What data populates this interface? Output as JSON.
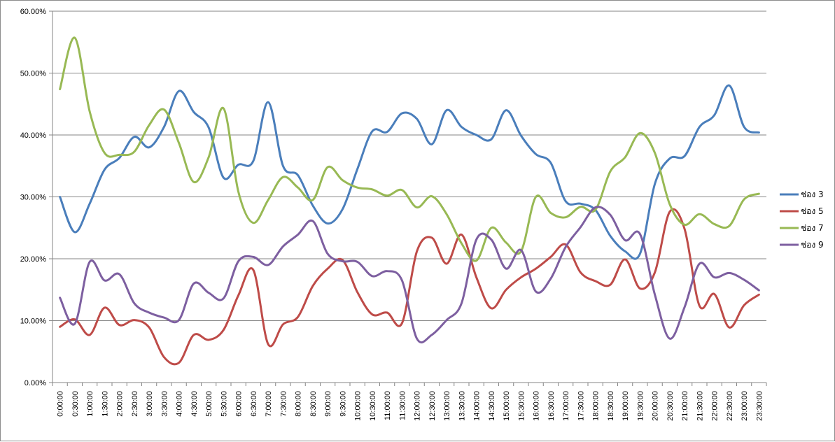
{
  "chart_data": {
    "type": "line",
    "title": "",
    "xlabel": "",
    "ylabel": "",
    "ylim": [
      0,
      0.6
    ],
    "y_ticks": [
      "0.00%",
      "10.00%",
      "20.00%",
      "30.00%",
      "40.00%",
      "50.00%",
      "60.00%"
    ],
    "grid": "horizontal",
    "legend_position": "right",
    "x": [
      "0:00:00",
      "0:30:00",
      "1:00:00",
      "1:30:00",
      "2:00:00",
      "2:30:00",
      "3:00:00",
      "3:30:00",
      "4:00:00",
      "4:30:00",
      "5:00:00",
      "5:30:00",
      "6:00:00",
      "6:30:00",
      "7:00:00",
      "7:30:00",
      "8:00:00",
      "8:30:00",
      "9:00:00",
      "9:30:00",
      "10:00:00",
      "10:30:00",
      "11:00:00",
      "11:30:00",
      "12:00:00",
      "12:30:00",
      "13:00:00",
      "13:30:00",
      "14:00:00",
      "14:30:00",
      "15:00:00",
      "15:30:00",
      "16:00:00",
      "16:30:00",
      "17:00:00",
      "17:30:00",
      "18:00:00",
      "18:30:00",
      "19:00:00",
      "19:30:00",
      "20:00:00",
      "20:30:00",
      "21:00:00",
      "21:30:00",
      "22:00:00",
      "22:30:00",
      "23:00:00",
      "23:30:00"
    ],
    "series": [
      {
        "name": "ช่อง 3",
        "color": "#4a7ebb",
        "values": [
          0.3,
          0.243,
          0.289,
          0.344,
          0.363,
          0.397,
          0.38,
          0.413,
          0.471,
          0.437,
          0.412,
          0.331,
          0.352,
          0.358,
          0.453,
          0.35,
          0.335,
          0.286,
          0.257,
          0.28,
          0.345,
          0.406,
          0.405,
          0.435,
          0.426,
          0.385,
          0.44,
          0.413,
          0.4,
          0.393,
          0.44,
          0.399,
          0.369,
          0.355,
          0.293,
          0.289,
          0.279,
          0.237,
          0.212,
          0.208,
          0.321,
          0.362,
          0.366,
          0.413,
          0.432,
          0.48,
          0.413,
          0.404
        ]
      },
      {
        "name": "ช่อง 5",
        "color": "#be4b48",
        "values": [
          0.09,
          0.102,
          0.077,
          0.121,
          0.093,
          0.101,
          0.089,
          0.041,
          0.032,
          0.077,
          0.069,
          0.085,
          0.141,
          0.182,
          0.062,
          0.094,
          0.106,
          0.156,
          0.184,
          0.198,
          0.146,
          0.11,
          0.113,
          0.096,
          0.212,
          0.234,
          0.192,
          0.239,
          0.17,
          0.12,
          0.15,
          0.17,
          0.184,
          0.203,
          0.223,
          0.178,
          0.164,
          0.158,
          0.199,
          0.152,
          0.178,
          0.276,
          0.248,
          0.124,
          0.143,
          0.089,
          0.125,
          0.142
        ]
      },
      {
        "name": "ช่อง 7",
        "color": "#98b954",
        "values": [
          0.474,
          0.557,
          0.438,
          0.371,
          0.368,
          0.373,
          0.416,
          0.441,
          0.387,
          0.324,
          0.364,
          0.443,
          0.308,
          0.258,
          0.295,
          0.332,
          0.315,
          0.295,
          0.348,
          0.327,
          0.315,
          0.312,
          0.302,
          0.311,
          0.283,
          0.301,
          0.272,
          0.225,
          0.197,
          0.25,
          0.226,
          0.212,
          0.3,
          0.274,
          0.267,
          0.284,
          0.279,
          0.341,
          0.364,
          0.403,
          0.371,
          0.288,
          0.255,
          0.272,
          0.256,
          0.253,
          0.296,
          0.305
        ]
      },
      {
        "name": "ช่อง 9",
        "color": "#7d5fa0",
        "values": [
          0.137,
          0.095,
          0.195,
          0.165,
          0.175,
          0.128,
          0.113,
          0.105,
          0.101,
          0.16,
          0.145,
          0.136,
          0.196,
          0.203,
          0.19,
          0.22,
          0.239,
          0.261,
          0.208,
          0.196,
          0.195,
          0.172,
          0.18,
          0.165,
          0.071,
          0.077,
          0.101,
          0.128,
          0.231,
          0.231,
          0.184,
          0.214,
          0.147,
          0.168,
          0.219,
          0.251,
          0.283,
          0.271,
          0.23,
          0.24,
          0.142,
          0.071,
          0.122,
          0.192,
          0.17,
          0.177,
          0.166,
          0.149
        ]
      }
    ]
  }
}
